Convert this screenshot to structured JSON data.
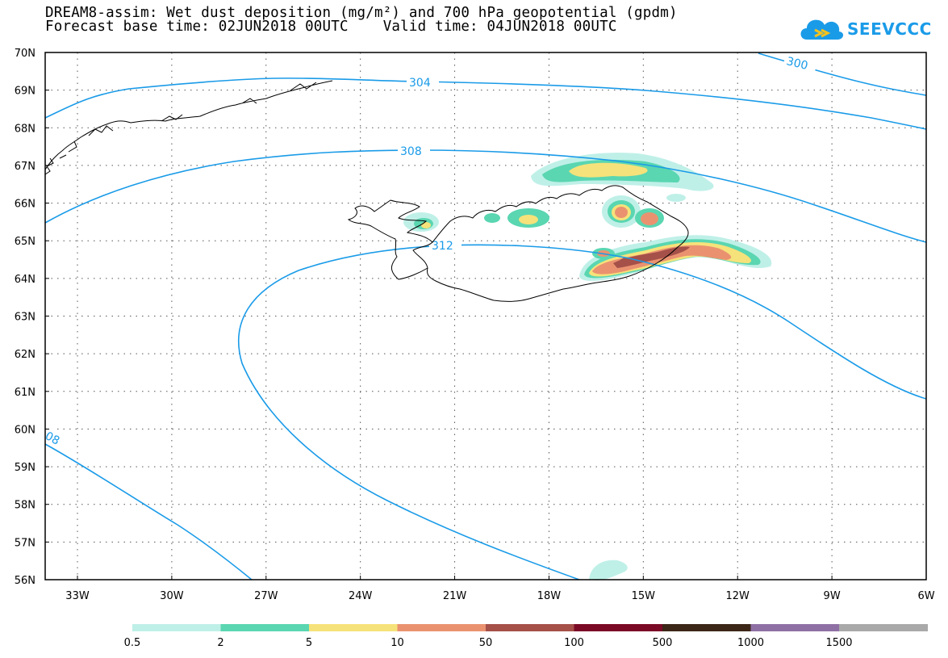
{
  "title": {
    "line1": "DREAM8-assim: Wet dust deposition (mg/m²) and 700 hPa geopotential (gpdm)",
    "line2": "Forecast base time: 02JUN2018 00UTC    Valid time: 04JUN2018 00UTC"
  },
  "logo": {
    "text": "SEEVCCC",
    "color": "#1a9be8"
  },
  "map": {
    "lat_labels": [
      "70N",
      "69N",
      "68N",
      "67N",
      "66N",
      "65N",
      "64N",
      "63N",
      "62N",
      "61N",
      "60N",
      "59N",
      "58N",
      "57N",
      "56N"
    ],
    "lon_labels": [
      "33W",
      "30W",
      "27W",
      "24W",
      "21W",
      "18W",
      "15W",
      "12W",
      "9W",
      "6W"
    ],
    "contour_labels": [
      "304",
      "300",
      "308",
      "312",
      "08"
    ],
    "contour_color": "#1a9be8"
  },
  "colorbar": {
    "ticks": [
      "0.5",
      "2",
      "5",
      "10",
      "50",
      "100",
      "500",
      "1000",
      "1500"
    ],
    "colors": [
      "#bff0e8",
      "#5ad6b1",
      "#f6e27a",
      "#ea9270",
      "#a55049",
      "#7a0a26",
      "#3c2617",
      "#8f70a4",
      "#a9a9a9"
    ]
  }
}
